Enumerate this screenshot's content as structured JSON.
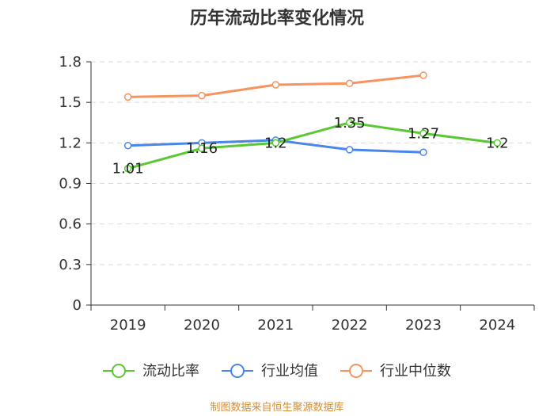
{
  "chart_data": {
    "type": "line",
    "title": "历年流动比率变化情况",
    "categories": [
      "2019",
      "2020",
      "2021",
      "2022",
      "2023",
      "2024"
    ],
    "ylim": [
      0,
      1.8
    ],
    "yticks": [
      "0",
      "0.3",
      "0.6",
      "0.9",
      "1.2",
      "1.5",
      "1.8"
    ],
    "ytick_values": [
      0,
      0.3,
      0.6,
      0.9,
      1.2,
      1.5,
      1.8
    ],
    "grid": true,
    "legend_position": "bottom",
    "series": [
      {
        "name": "流动比率",
        "color": "#5ac832",
        "values": [
          1.01,
          1.16,
          1.2,
          1.35,
          1.27,
          1.2
        ],
        "labels": [
          "1.01",
          "1.16",
          "1.2",
          "1.35",
          "1.27",
          "1.2"
        ]
      },
      {
        "name": "行业均值",
        "color": "#4a86e8",
        "values": [
          1.18,
          1.2,
          1.22,
          1.15,
          1.13,
          null
        ]
      },
      {
        "name": "行业中位数",
        "color": "#f7935f",
        "values": [
          1.54,
          1.55,
          1.63,
          1.64,
          1.7,
          null
        ]
      }
    ]
  },
  "footer": {
    "source": "制图数据来自恒生聚源数据库"
  }
}
